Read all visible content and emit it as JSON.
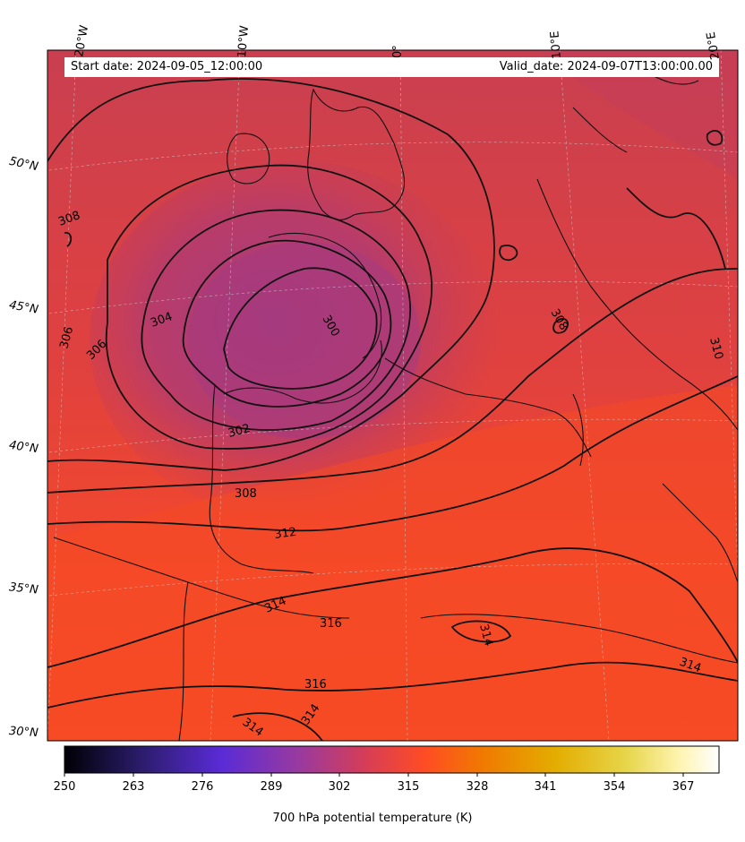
{
  "header": {
    "start_date": "Start date: 2024-09-05_12:00:00",
    "valid_date": "Valid_date: 2024-09-07T13:00:00.00"
  },
  "longitude_labels": [
    "20°W",
    "10°W",
    "0°",
    "10°E",
    "20°E"
  ],
  "latitude_labels": [
    "50°N",
    "45°N",
    "40°N",
    "35°N",
    "30°N"
  ],
  "contour_labels": [
    "308",
    "306",
    "306",
    "304",
    "300",
    "302",
    "308",
    "312",
    "314",
    "316",
    "316",
    "314",
    "314",
    "314",
    "308",
    "310"
  ],
  "colorbar": {
    "label": "700 hPa potential temperature (K)",
    "ticks": [
      "250",
      "263",
      "276",
      "289",
      "302",
      "315",
      "328",
      "341",
      "354",
      "367"
    ],
    "colormap": [
      "#000004",
      "#2c1d6e",
      "#5a2bd6",
      "#9a3a9e",
      "#d63d56",
      "#ff4c24",
      "#f07a00",
      "#e3ad00",
      "#e7d64c",
      "#fff4b0",
      "#ffffff"
    ]
  },
  "field_colors": {
    "cold_core": "#9a3a8a",
    "mid": "#cf3f4e",
    "warm": "#f2492a"
  }
}
